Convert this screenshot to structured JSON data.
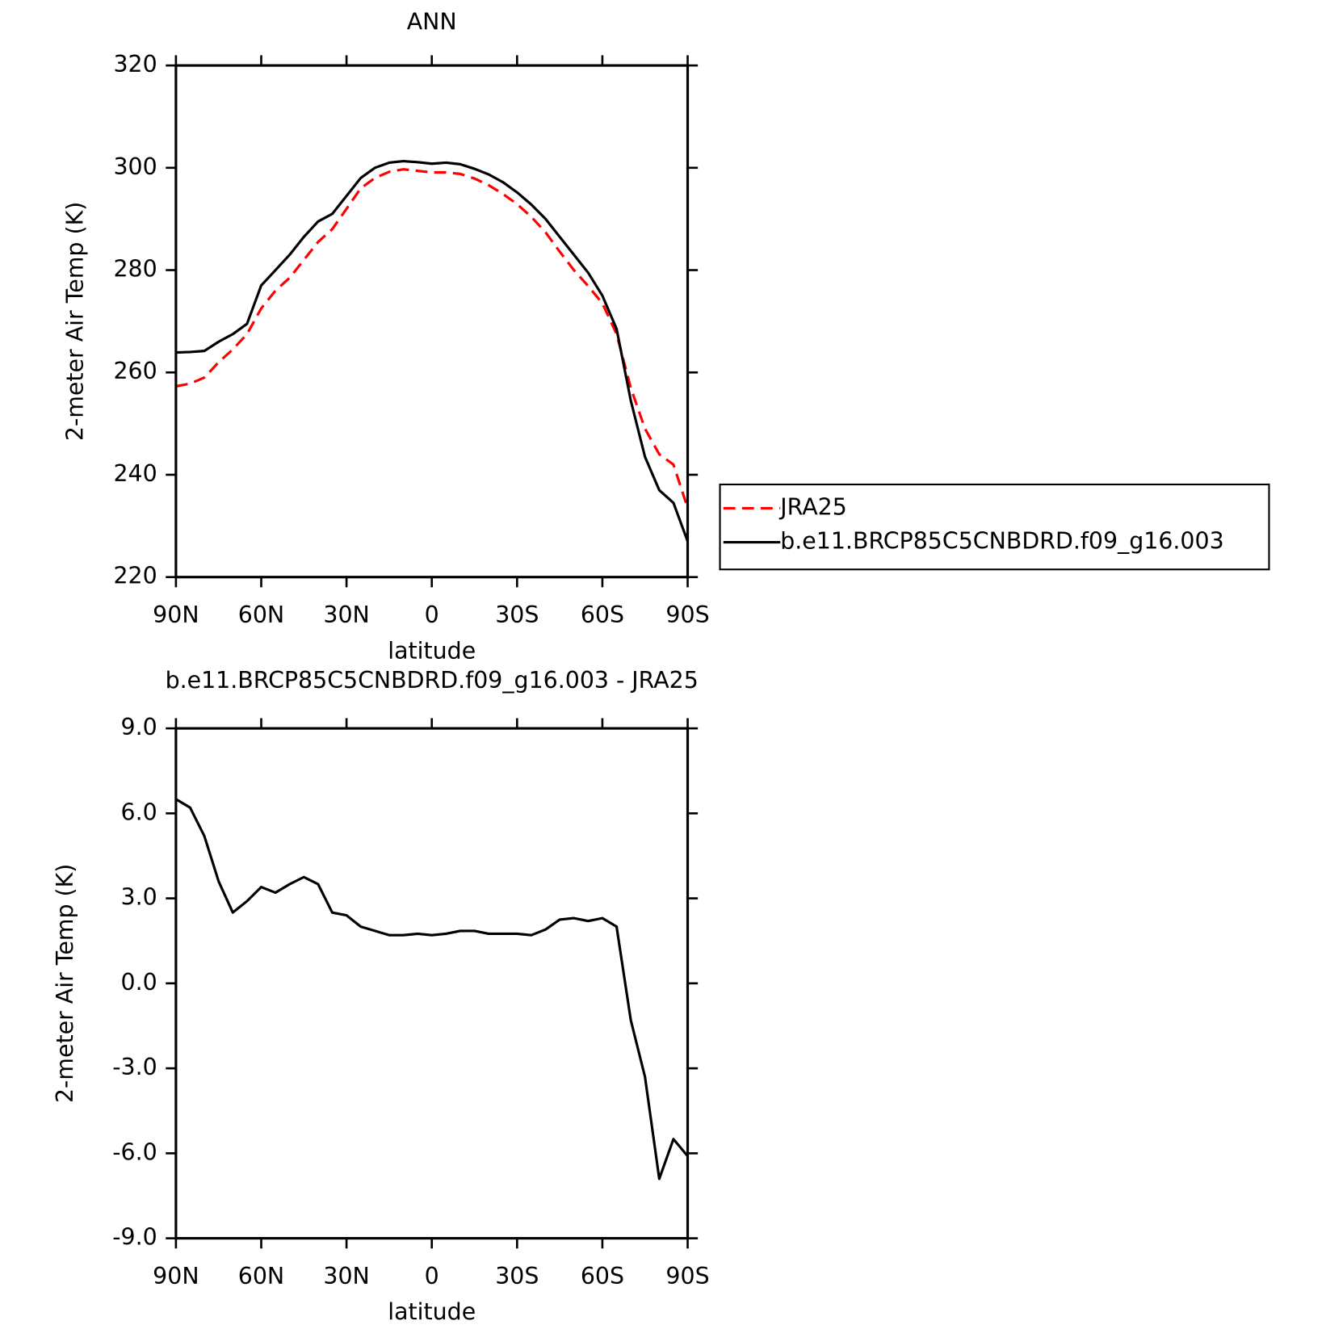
{
  "chart_data": [
    {
      "type": "line",
      "title": "ANN",
      "x_label": "latitude",
      "y_label": "2-meter Air Temp (K)",
      "x": [
        90,
        85,
        80,
        75,
        70,
        65,
        60,
        55,
        50,
        45,
        40,
        35,
        30,
        25,
        20,
        15,
        10,
        5,
        0,
        -5,
        -10,
        -15,
        -20,
        -25,
        -30,
        -35,
        -40,
        -45,
        -50,
        -55,
        -60,
        -65,
        -70,
        -75,
        -80,
        -85,
        -90
      ],
      "series": [
        {
          "name": "JRA25",
          "color": "#ff0000",
          "linestyle": "dashed",
          "values": [
            257.3,
            257.8,
            259,
            262,
            264.5,
            267.5,
            272.5,
            276,
            278.5,
            282,
            285.5,
            288,
            292,
            296,
            298,
            299.2,
            299.7,
            299.4,
            299.1,
            299.1,
            298.8,
            297.9,
            296.6,
            294.9,
            292.9,
            290.4,
            287.4,
            283.6,
            280,
            276.9,
            273.5,
            267.5,
            257,
            249,
            244,
            242,
            233.5
          ]
        },
        {
          "name": "b.e11.BRCP85C5CNBDRD.f09_g16.003",
          "color": "#000000",
          "linestyle": "solid",
          "values": [
            263.9,
            264,
            264.2,
            266,
            267.5,
            269.5,
            277,
            280,
            283,
            286.5,
            289.5,
            291,
            294.5,
            298,
            300,
            301,
            301.3,
            301.1,
            300.8,
            301,
            300.7,
            299.8,
            298.7,
            297.2,
            295.2,
            292.8,
            290,
            286.5,
            283,
            279.5,
            275,
            268.5,
            254.5,
            243.5,
            237,
            234.5,
            227
          ]
        }
      ],
      "xlim": [
        90,
        -90
      ],
      "xticks": [
        {
          "value": 90,
          "label": "90N"
        },
        {
          "value": 60,
          "label": "60N"
        },
        {
          "value": 30,
          "label": "30N"
        },
        0,
        {
          "value": -30,
          "label": "30S"
        },
        {
          "value": -60,
          "label": "60S"
        },
        {
          "value": -90,
          "label": "90S"
        }
      ],
      "ylim": [
        220,
        320
      ],
      "yticks": [
        220,
        240,
        260,
        280,
        300,
        320
      ],
      "legend": "right"
    },
    {
      "type": "line",
      "title": "b.e11.BRCP85C5CNBDRD.f09_g16.003 - JRA25",
      "x_label": "latitude",
      "y_label": "2-meter Air Temp (K)",
      "x": [
        90,
        85,
        80,
        75,
        70,
        65,
        60,
        55,
        50,
        45,
        40,
        35,
        30,
        25,
        20,
        15,
        10,
        5,
        0,
        -5,
        -10,
        -15,
        -20,
        -25,
        -30,
        -35,
        -40,
        -45,
        -50,
        -55,
        -60,
        -65,
        -70,
        -75,
        -80,
        -85,
        -90
      ],
      "values": [
        6.5,
        6.2,
        5.2,
        3.6,
        2.5,
        2.9,
        3.4,
        3.2,
        3.5,
        3.75,
        3.5,
        2.5,
        2.4,
        2.0,
        1.85,
        1.7,
        1.7,
        1.75,
        1.7,
        1.75,
        1.85,
        1.85,
        1.75,
        1.75,
        1.75,
        1.7,
        1.9,
        2.25,
        2.3,
        2.2,
        2.3,
        2.0,
        -1.3,
        -3.3,
        -6.9,
        -5.5,
        -6.1
      ],
      "color": "#000000",
      "xlim": [
        90,
        -90
      ],
      "xticks": [
        {
          "value": 90,
          "label": "90N"
        },
        {
          "value": 60,
          "label": "60N"
        },
        {
          "value": 30,
          "label": "30N"
        },
        0,
        {
          "value": -30,
          "label": "30S"
        },
        {
          "value": -60,
          "label": "60S"
        },
        {
          "value": -90,
          "label": "90S"
        }
      ],
      "ylim": [
        -9,
        9
      ],
      "yticks": [
        {
          "value": -9,
          "label": "-9.0"
        },
        {
          "value": -6,
          "label": "-6.0"
        },
        {
          "value": -3,
          "label": "-3.0"
        },
        {
          "value": 0,
          "label": "0.0"
        },
        {
          "value": 3,
          "label": "3.0"
        },
        {
          "value": 6,
          "label": "6.0"
        },
        {
          "value": 9,
          "label": "9.0"
        }
      ]
    }
  ]
}
